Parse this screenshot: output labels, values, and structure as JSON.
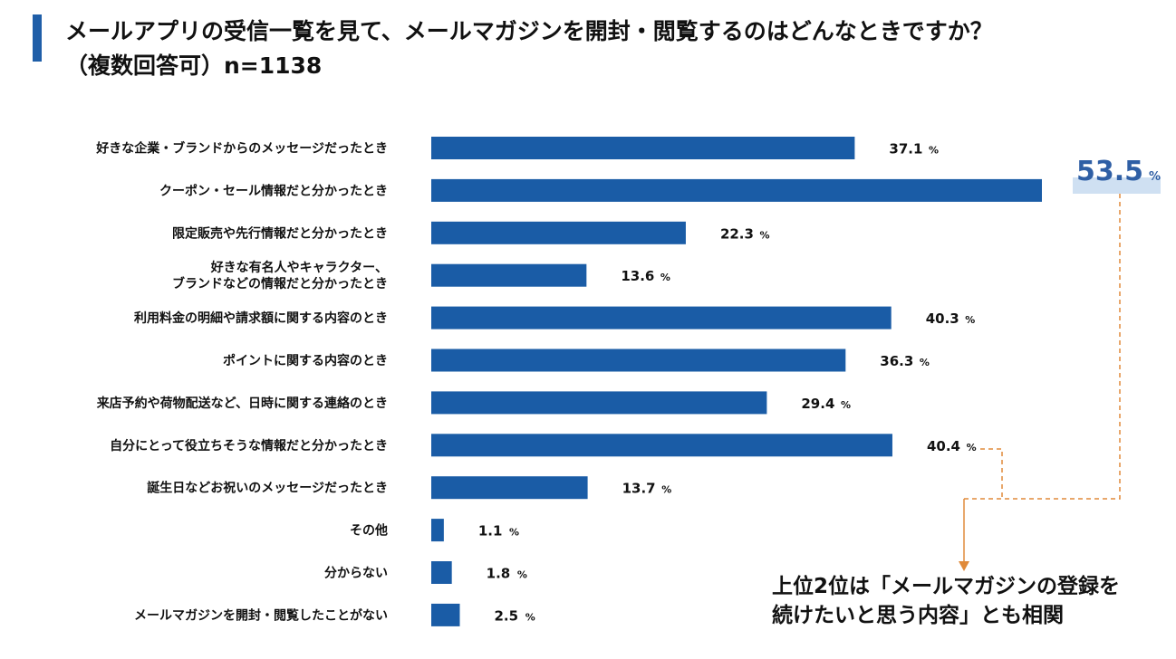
{
  "title": "メールアプリの受信一覧を見て、メールマガジンを開封・閲覧するのはどんなときですか？",
  "subtitle": "（複数回答可）n=1138",
  "highlight": {
    "value": "53.5",
    "unit": "%"
  },
  "note_lines": [
    "上位2位は「メールマガジンの登録を",
    "続けたいと思う内容」とも相関"
  ],
  "colors": {
    "bar": "#1a5ca6",
    "accent_line": "#e08a3a",
    "highlight_text": "#2f5fa5",
    "highlight_bg": "#cfe0f2",
    "title_bar": "#1f5ea8"
  },
  "chart_data": {
    "type": "bar",
    "orientation": "horizontal",
    "title": "メールアプリの受信一覧を見て、メールマガジンを開封・閲覧するのはどんなときですか？",
    "unit": "%",
    "xlim": [
      0,
      53.5
    ],
    "categories": [
      [
        "好きな企業・ブランドからのメッセージだったとき"
      ],
      [
        "クーポン・セール情報だと分かったとき"
      ],
      [
        "限定販売や先行情報だと分かったとき"
      ],
      [
        "好きな有名人やキャラクター、",
        "ブランドなどの情報だと分かったとき"
      ],
      [
        "利用料金の明細や請求額に関する内容のとき"
      ],
      [
        "ポイントに関する内容のとき"
      ],
      [
        "来店予約や荷物配送など、日時に関する連絡のとき"
      ],
      [
        "自分にとって役立ちそうな情報だと分かったとき"
      ],
      [
        "誕生日などお祝いのメッセージだったとき"
      ],
      [
        "その他"
      ],
      [
        "分からない"
      ],
      [
        "メールマガジンを開封・閲覧したことがない"
      ]
    ],
    "values": [
      37.1,
      53.5,
      22.3,
      13.6,
      40.3,
      36.3,
      29.4,
      40.4,
      13.7,
      1.1,
      1.8,
      2.5
    ],
    "labels": [
      "37.1",
      null,
      "22.3",
      "13.6",
      "40.3",
      "36.3",
      "29.4",
      "40.4",
      "13.7",
      "1.1",
      "1.8",
      "2.5"
    ]
  }
}
